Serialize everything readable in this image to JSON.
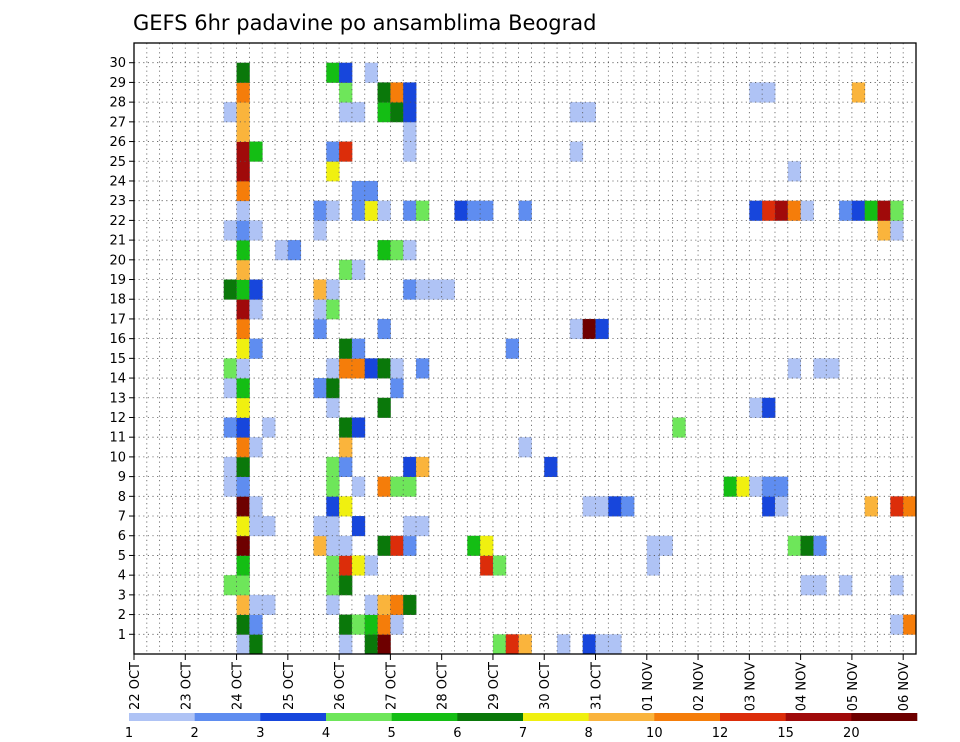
{
  "chart_data": {
    "type": "heatmap",
    "title": "GEFS 6hr padavine po ansamblima Beograd",
    "y_ticks": [
      "1",
      "2",
      "3",
      "4",
      "5",
      "6",
      "7",
      "8",
      "9",
      "10",
      "11",
      "12",
      "13",
      "14",
      "15",
      "16",
      "17",
      "18",
      "19",
      "20",
      "21",
      "22",
      "23",
      "24",
      "25",
      "26",
      "27",
      "28",
      "29",
      "30"
    ],
    "x_ticks": [
      "22 OCT",
      "23 OCT",
      "24 OCT",
      "25 OCT",
      "26 OCT",
      "27 OCT",
      "28 OCT",
      "29 OCT",
      "30 OCT",
      "31 OCT",
      "01 NOV",
      "02 NOV",
      "03 NOV",
      "04 NOV",
      "05 NOV",
      "06 NOV"
    ],
    "time_steps_6h": 61,
    "member_rows": 31,
    "color_levels": [
      "1",
      "2",
      "3",
      "4",
      "5",
      "6",
      "7",
      "8",
      "10",
      "12",
      "15",
      "20"
    ],
    "colors": [
      "#afc3f5",
      "#5f8df0",
      "#1746dc",
      "#6ee65a",
      "#14be14",
      "#0a780a",
      "#f0f010",
      "#fab43c",
      "#f57d0a",
      "#dc2d0a",
      "#a00a0a",
      "#6e0000"
    ],
    "cells": [
      [
        0,
        8,
        0
      ],
      [
        0,
        9,
        5
      ],
      [
        0,
        16,
        0
      ],
      [
        0,
        18,
        5
      ],
      [
        0,
        19,
        11
      ],
      [
        0,
        28,
        3
      ],
      [
        0,
        29,
        9
      ],
      [
        0,
        30,
        7
      ],
      [
        0,
        33,
        0
      ],
      [
        0,
        35,
        2
      ],
      [
        0,
        36,
        0
      ],
      [
        0,
        37,
        0
      ],
      [
        1,
        8,
        5
      ],
      [
        1,
        9,
        1
      ],
      [
        1,
        16,
        5
      ],
      [
        1,
        17,
        3
      ],
      [
        1,
        18,
        4
      ],
      [
        1,
        19,
        8
      ],
      [
        1,
        20,
        0
      ],
      [
        1,
        59,
        0
      ],
      [
        1,
        60,
        8
      ],
      [
        2,
        8,
        7
      ],
      [
        2,
        9,
        0
      ],
      [
        2,
        10,
        0
      ],
      [
        2,
        15,
        0
      ],
      [
        2,
        18,
        0
      ],
      [
        2,
        19,
        7
      ],
      [
        2,
        20,
        8
      ],
      [
        2,
        21,
        5
      ],
      [
        3,
        7,
        3
      ],
      [
        3,
        8,
        3
      ],
      [
        3,
        15,
        3
      ],
      [
        3,
        16,
        5
      ],
      [
        3,
        52,
        0
      ],
      [
        3,
        53,
        0
      ],
      [
        3,
        55,
        0
      ],
      [
        3,
        59,
        0
      ],
      [
        4,
        8,
        4
      ],
      [
        4,
        15,
        3
      ],
      [
        4,
        16,
        9
      ],
      [
        4,
        17,
        6
      ],
      [
        4,
        18,
        0
      ],
      [
        4,
        27,
        9
      ],
      [
        4,
        28,
        3
      ],
      [
        4,
        40,
        0
      ],
      [
        5,
        8,
        11
      ],
      [
        5,
        14,
        7
      ],
      [
        5,
        15,
        0
      ],
      [
        5,
        16,
        0
      ],
      [
        5,
        19,
        5
      ],
      [
        5,
        20,
        9
      ],
      [
        5,
        21,
        1
      ],
      [
        5,
        26,
        4
      ],
      [
        5,
        27,
        6
      ],
      [
        5,
        40,
        0
      ],
      [
        5,
        41,
        0
      ],
      [
        5,
        51,
        3
      ],
      [
        5,
        52,
        5
      ],
      [
        5,
        53,
        1
      ],
      [
        6,
        8,
        6
      ],
      [
        6,
        9,
        0
      ],
      [
        6,
        10,
        0
      ],
      [
        6,
        14,
        0
      ],
      [
        6,
        15,
        0
      ],
      [
        6,
        17,
        2
      ],
      [
        6,
        21,
        0
      ],
      [
        6,
        22,
        0
      ],
      [
        7,
        8,
        11
      ],
      [
        7,
        9,
        0
      ],
      [
        7,
        15,
        2
      ],
      [
        7,
        16,
        6
      ],
      [
        7,
        35,
        0
      ],
      [
        7,
        36,
        0
      ],
      [
        7,
        37,
        2
      ],
      [
        7,
        38,
        1
      ],
      [
        7,
        49,
        2
      ],
      [
        7,
        50,
        0
      ],
      [
        7,
        57,
        7
      ],
      [
        7,
        59,
        9
      ],
      [
        7,
        60,
        8
      ],
      [
        8,
        7,
        0
      ],
      [
        8,
        8,
        1
      ],
      [
        8,
        15,
        3
      ],
      [
        8,
        17,
        0
      ],
      [
        8,
        19,
        8
      ],
      [
        8,
        20,
        3
      ],
      [
        8,
        21,
        3
      ],
      [
        8,
        46,
        4
      ],
      [
        8,
        47,
        6
      ],
      [
        8,
        48,
        0
      ],
      [
        8,
        49,
        1
      ],
      [
        8,
        50,
        1
      ],
      [
        9,
        7,
        0
      ],
      [
        9,
        8,
        5
      ],
      [
        9,
        15,
        3
      ],
      [
        9,
        16,
        1
      ],
      [
        9,
        21,
        2
      ],
      [
        9,
        22,
        7
      ],
      [
        9,
        32,
        2
      ],
      [
        10,
        8,
        8
      ],
      [
        10,
        9,
        0
      ],
      [
        10,
        16,
        7
      ],
      [
        10,
        30,
        0
      ],
      [
        11,
        7,
        1
      ],
      [
        11,
        8,
        2
      ],
      [
        11,
        10,
        0
      ],
      [
        11,
        16,
        5
      ],
      [
        11,
        17,
        2
      ],
      [
        11,
        42,
        3
      ],
      [
        12,
        8,
        6
      ],
      [
        12,
        15,
        0
      ],
      [
        12,
        19,
        5
      ],
      [
        12,
        48,
        0
      ],
      [
        12,
        49,
        2
      ],
      [
        13,
        7,
        0
      ],
      [
        13,
        8,
        4
      ],
      [
        13,
        14,
        1
      ],
      [
        13,
        15,
        5
      ],
      [
        13,
        20,
        1
      ],
      [
        14,
        7,
        3
      ],
      [
        14,
        8,
        0
      ],
      [
        14,
        15,
        0
      ],
      [
        14,
        16,
        8
      ],
      [
        14,
        17,
        8
      ],
      [
        14,
        18,
        2
      ],
      [
        14,
        19,
        5
      ],
      [
        14,
        20,
        0
      ],
      [
        14,
        22,
        1
      ],
      [
        14,
        51,
        0
      ],
      [
        14,
        53,
        0
      ],
      [
        14,
        54,
        0
      ],
      [
        15,
        8,
        6
      ],
      [
        15,
        9,
        1
      ],
      [
        15,
        16,
        5
      ],
      [
        15,
        17,
        1
      ],
      [
        15,
        29,
        1
      ],
      [
        16,
        8,
        8
      ],
      [
        16,
        14,
        1
      ],
      [
        16,
        19,
        1
      ],
      [
        16,
        34,
        0
      ],
      [
        16,
        35,
        11
      ],
      [
        16,
        36,
        2
      ],
      [
        17,
        8,
        10
      ],
      [
        17,
        9,
        0
      ],
      [
        17,
        14,
        0
      ],
      [
        17,
        15,
        3
      ],
      [
        18,
        7,
        5
      ],
      [
        18,
        8,
        4
      ],
      [
        18,
        9,
        2
      ],
      [
        18,
        14,
        7
      ],
      [
        18,
        15,
        0
      ],
      [
        18,
        21,
        1
      ],
      [
        18,
        22,
        0
      ],
      [
        18,
        23,
        0
      ],
      [
        18,
        24,
        0
      ],
      [
        19,
        8,
        7
      ],
      [
        19,
        16,
        3
      ],
      [
        19,
        17,
        0
      ],
      [
        20,
        8,
        4
      ],
      [
        20,
        11,
        0
      ],
      [
        20,
        12,
        1
      ],
      [
        20,
        19,
        4
      ],
      [
        20,
        20,
        3
      ],
      [
        20,
        21,
        0
      ],
      [
        21,
        7,
        0
      ],
      [
        21,
        8,
        1
      ],
      [
        21,
        9,
        0
      ],
      [
        21,
        14,
        0
      ],
      [
        21,
        58,
        7
      ],
      [
        21,
        59,
        0
      ],
      [
        22,
        8,
        0
      ],
      [
        22,
        14,
        1
      ],
      [
        22,
        15,
        0
      ],
      [
        22,
        17,
        1
      ],
      [
        22,
        18,
        6
      ],
      [
        22,
        19,
        0
      ],
      [
        22,
        21,
        1
      ],
      [
        22,
        22,
        3
      ],
      [
        22,
        25,
        2
      ],
      [
        22,
        26,
        1
      ],
      [
        22,
        27,
        1
      ],
      [
        22,
        30,
        1
      ],
      [
        22,
        48,
        2
      ],
      [
        22,
        49,
        9
      ],
      [
        22,
        50,
        10
      ],
      [
        22,
        51,
        8
      ],
      [
        22,
        52,
        0
      ],
      [
        22,
        55,
        1
      ],
      [
        22,
        56,
        2
      ],
      [
        22,
        57,
        4
      ],
      [
        22,
        58,
        10
      ],
      [
        22,
        59,
        3
      ],
      [
        23,
        8,
        8
      ],
      [
        23,
        17,
        1
      ],
      [
        23,
        18,
        1
      ],
      [
        24,
        8,
        10
      ],
      [
        24,
        15,
        6
      ],
      [
        24,
        51,
        0
      ],
      [
        25,
        8,
        10
      ],
      [
        25,
        9,
        4
      ],
      [
        25,
        15,
        1
      ],
      [
        25,
        16,
        9
      ],
      [
        25,
        21,
        0
      ],
      [
        25,
        34,
        0
      ],
      [
        26,
        8,
        7
      ],
      [
        26,
        21,
        0
      ],
      [
        27,
        7,
        0
      ],
      [
        27,
        8,
        7
      ],
      [
        27,
        16,
        0
      ],
      [
        27,
        17,
        0
      ],
      [
        27,
        19,
        4
      ],
      [
        27,
        20,
        5
      ],
      [
        27,
        21,
        2
      ],
      [
        27,
        34,
        0
      ],
      [
        27,
        35,
        0
      ],
      [
        28,
        8,
        8
      ],
      [
        28,
        16,
        3
      ],
      [
        28,
        19,
        5
      ],
      [
        28,
        20,
        8
      ],
      [
        28,
        21,
        2
      ],
      [
        28,
        48,
        0
      ],
      [
        28,
        49,
        0
      ],
      [
        28,
        56,
        7
      ],
      [
        29,
        8,
        5
      ],
      [
        29,
        15,
        4
      ],
      [
        29,
        16,
        2
      ],
      [
        29,
        18,
        0
      ]
    ]
  }
}
